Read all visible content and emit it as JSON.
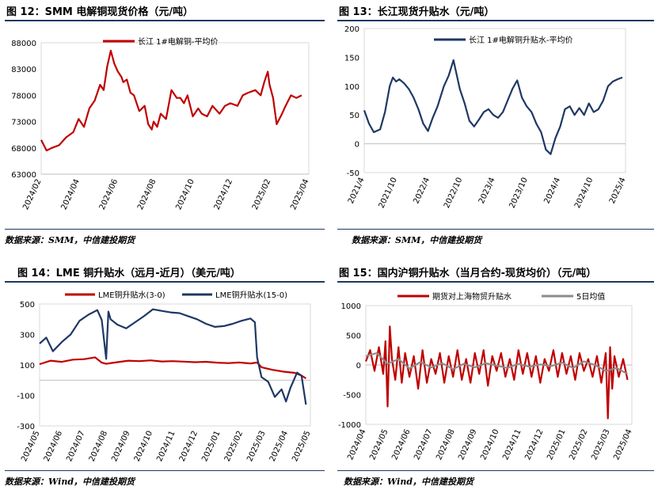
{
  "colors": {
    "red": "#c00000",
    "navy": "#1f3864",
    "gray": "#8c8c8c",
    "axis": "#bfbfbf"
  },
  "charts": [
    {
      "title": "图 12：SMM 电解铜现货价格（元/吨）",
      "source": "数据来源：SMM，中信建投期货",
      "chart_data": {
        "type": "line",
        "title": "图 12：SMM 电解铜现货价格（元/吨）",
        "ylim": [
          63000,
          88000
        ],
        "yticks": [
          "88000",
          "83000",
          "78000",
          "73000",
          "68000",
          "63000"
        ],
        "xlim": [
          0,
          15
        ],
        "xticks": [
          "2024/02",
          "2024/04",
          "2024/06",
          "2024/08",
          "2024/10",
          "2024/12",
          "2025/02",
          "2025/04"
        ],
        "legend_position": "top-center",
        "grid": false,
        "series": [
          {
            "name": "长江 1#电解铜-平均价",
            "color": "#c00000",
            "x": [
              0,
              0.3,
              0.6,
              1,
              1.4,
              1.8,
              2.1,
              2.4,
              2.7,
              3,
              3.3,
              3.5,
              3.7,
              3.9,
              4.1,
              4.3,
              4.5,
              4.6,
              4.8,
              5,
              5.2,
              5.5,
              5.8,
              6,
              6.2,
              6.3,
              6.5,
              6.7,
              7,
              7.3,
              7.6,
              7.8,
              8,
              8.2,
              8.5,
              8.8,
              9,
              9.3,
              9.6,
              10,
              10.3,
              10.6,
              11,
              11.3,
              11.6,
              12,
              12.3,
              12.5,
              12.7,
              12.8,
              13,
              13.2,
              13.5,
              13.7,
              14,
              14.3,
              14.6
            ],
            "values": [
              69500,
              67500,
              68000,
              68500,
              70000,
              71000,
              73500,
              72000,
              75500,
              77000,
              80000,
              79000,
              83500,
              86500,
              84000,
              82500,
              81500,
              80500,
              81000,
              78500,
              78000,
              75000,
              76000,
              72500,
              71500,
              73000,
              72000,
              74500,
              73500,
              79000,
              77500,
              77500,
              76500,
              78000,
              74000,
              75500,
              74500,
              74000,
              76000,
              74500,
              76000,
              76500,
              76000,
              78000,
              78500,
              79000,
              78000,
              80500,
              82500,
              80000,
              77500,
              72500,
              74500,
              76000,
              78000,
              77500,
              78000
            ]
          }
        ]
      }
    },
    {
      "title": "图 13：长江现货升贴水（元/吨）",
      "source": "数据来源：SMM，中信建投期货",
      "chart_data": {
        "type": "line",
        "title": "图 13：长江现货升贴水（元/吨）",
        "ylim": [
          -50,
          200
        ],
        "yticks": [
          "200",
          "150",
          "100",
          "50",
          "0",
          "-50"
        ],
        "xlim": [
          0,
          8.2
        ],
        "xticks": [
          "2021/4",
          "2021/10",
          "2022/4",
          "2022/10",
          "2023/4",
          "2023/10",
          "2024/4",
          "2024/10",
          "2025/4"
        ],
        "legend_position": "top-center",
        "grid": false,
        "series": [
          {
            "name": "长江 1#电解铜升贴水-平均价",
            "color": "#1f3864",
            "x": [
              0,
              0.15,
              0.3,
              0.5,
              0.65,
              0.8,
              0.9,
              1.0,
              1.1,
              1.25,
              1.4,
              1.55,
              1.7,
              1.85,
              2.0,
              2.15,
              2.3,
              2.5,
              2.65,
              2.8,
              2.9,
              3.0,
              3.15,
              3.3,
              3.45,
              3.6,
              3.75,
              3.9,
              4.05,
              4.2,
              4.35,
              4.5,
              4.65,
              4.8,
              4.95,
              5.1,
              5.25,
              5.4,
              5.55,
              5.7,
              5.85,
              6.0,
              6.15,
              6.3,
              6.45,
              6.6,
              6.75,
              6.9,
              7.05,
              7.2,
              7.35,
              7.5,
              7.65,
              7.8,
              7.95,
              8.1
            ],
            "values": [
              58,
              35,
              20,
              25,
              55,
              100,
              115,
              108,
              112,
              105,
              95,
              80,
              60,
              35,
              22,
              45,
              65,
              100,
              118,
              145,
              120,
              95,
              70,
              40,
              30,
              42,
              55,
              60,
              50,
              45,
              55,
              75,
              95,
              110,
              80,
              65,
              55,
              35,
              20,
              -10,
              -18,
              10,
              30,
              60,
              65,
              50,
              62,
              50,
              70,
              55,
              60,
              75,
              100,
              108,
              112,
              115
            ]
          }
        ]
      }
    },
    {
      "title": "图 14：LME 铜升贴水（远月-近月）（美元/吨）",
      "source": "数据来源：Wind，中信建投期货",
      "chart_data": {
        "type": "line",
        "title": "图 14：LME 铜升贴水（远月-近月）（美元/吨）",
        "ylim": [
          -300,
          500
        ],
        "yticks": [
          "500",
          "300",
          "100",
          "-100",
          "-300"
        ],
        "xlim": [
          0,
          12.2
        ],
        "xticks": [
          "2024/05",
          "2024/06",
          "2024/07",
          "2024/08",
          "2024/09",
          "2024/10",
          "2024/11",
          "2024/12",
          "2025/01",
          "2025/02",
          "2025/03",
          "2025/04",
          "2025/05"
        ],
        "legend_position": "top",
        "grid": false,
        "series": [
          {
            "name": "LME铜升贴水(3-0)",
            "color": "#c00000",
            "x": [
              0,
              0.5,
              1,
              1.5,
              2,
              2.5,
              2.8,
              3,
              3.5,
              4,
              4.5,
              5,
              5.5,
              6,
              6.5,
              7,
              7.5,
              8,
              8.5,
              9,
              9.5,
              9.8,
              10,
              10.5,
              11,
              11.5,
              11.8,
              12
            ],
            "values": [
              105,
              128,
              120,
              135,
              138,
              150,
              115,
              108,
              118,
              128,
              125,
              130,
              123,
              125,
              122,
              118,
              121,
              115,
              112,
              116,
              110,
              116,
              85,
              68,
              56,
              48,
              30,
              12
            ]
          },
          {
            "name": "LME铜升贴水(15-0)",
            "color": "#1f3864",
            "x": [
              0,
              0.3,
              0.6,
              1,
              1.4,
              1.8,
              2.2,
              2.6,
              2.8,
              3.0,
              3.1,
              3.2,
              3.5,
              3.9,
              4.3,
              4.7,
              5.1,
              5.5,
              5.9,
              6.3,
              6.7,
              7.1,
              7.5,
              7.9,
              8.3,
              8.7,
              9.1,
              9.5,
              9.7,
              9.8,
              10.0,
              10.3,
              10.6,
              10.9,
              11.1,
              11.3,
              11.6,
              11.8,
              12.0
            ],
            "values": [
              240,
              280,
              190,
              250,
              300,
              390,
              430,
              460,
              395,
              140,
              450,
              400,
              365,
              340,
              380,
              420,
              465,
              455,
              445,
              440,
              420,
              400,
              370,
              350,
              355,
              370,
              390,
              405,
              380,
              150,
              20,
              -10,
              -110,
              -60,
              -140,
              -50,
              50,
              30,
              -160
            ]
          }
        ]
      }
    },
    {
      "title": "图 15：国内沪铜升贴水（当月合约-现货均价）（元/吨）",
      "source": "数据来源：Wind，中信建投期货",
      "chart_data": {
        "type": "line",
        "title": "图 15：国内沪铜升贴水（当月合约-现货均价）（元/吨）",
        "ylim": [
          -1000,
          1000
        ],
        "yticks": [
          "1000",
          "500",
          "0",
          "-500",
          "-1000"
        ],
        "xlim": [
          0,
          12.2
        ],
        "xticks": [
          "2024/04",
          "2024/05",
          "2024/06",
          "2024/07",
          "2024/08",
          "2024/09",
          "2024/10",
          "2024/11",
          "2024/12",
          "2025/01",
          "2025/02",
          "2025/03",
          "2025/04"
        ],
        "legend_position": "top",
        "grid": false,
        "series": [
          {
            "name": "期货对上海物贸升贴水",
            "color": "#c00000",
            "x": [
              0,
              0.2,
              0.4,
              0.6,
              0.8,
              0.9,
              1.0,
              1.1,
              1.2,
              1.35,
              1.5,
              1.65,
              1.8,
              2.0,
              2.2,
              2.4,
              2.6,
              2.8,
              3.0,
              3.2,
              3.4,
              3.6,
              3.8,
              4.0,
              4.2,
              4.4,
              4.6,
              4.8,
              5.0,
              5.2,
              5.4,
              5.6,
              5.8,
              6.0,
              6.2,
              6.4,
              6.6,
              6.8,
              7.0,
              7.2,
              7.4,
              7.6,
              7.8,
              8.0,
              8.2,
              8.4,
              8.6,
              8.8,
              9.0,
              9.2,
              9.4,
              9.6,
              9.8,
              10.0,
              10.2,
              10.4,
              10.6,
              10.8,
              11.0,
              11.1,
              11.2,
              11.3,
              11.4,
              11.6,
              11.8,
              12.0
            ],
            "values": [
              60,
              250,
              -100,
              300,
              -150,
              400,
              -700,
              650,
              100,
              -250,
              300,
              -300,
              200,
              -200,
              150,
              -400,
              250,
              -300,
              100,
              -150,
              200,
              -300,
              150,
              -200,
              250,
              -250,
              100,
              -300,
              200,
              -150,
              250,
              -350,
              150,
              -100,
              200,
              -200,
              100,
              -250,
              250,
              -150,
              200,
              -200,
              150,
              -300,
              100,
              -100,
              250,
              -200,
              200,
              -150,
              150,
              -250,
              200,
              -100,
              100,
              -200,
              150,
              -300,
              200,
              -900,
              300,
              -400,
              150,
              -200,
              100,
              -250
            ]
          },
          {
            "name": "5日均值",
            "color": "#8c8c8c",
            "x": [
              0,
              0.5,
              1.0,
              1.5,
              2.0,
              2.5,
              3.0,
              3.5,
              4.0,
              4.5,
              5.0,
              5.5,
              6.0,
              6.5,
              7.0,
              7.5,
              8.0,
              8.5,
              9.0,
              9.5,
              10.0,
              10.5,
              11.0,
              11.5,
              12.0
            ],
            "values": [
              150,
              200,
              20,
              100,
              -60,
              50,
              -40,
              30,
              -70,
              20,
              -40,
              30,
              -10,
              -50,
              20,
              -30,
              10,
              -20,
              40,
              -50,
              60,
              0,
              -100,
              -50,
              -150
            ]
          }
        ]
      }
    }
  ]
}
